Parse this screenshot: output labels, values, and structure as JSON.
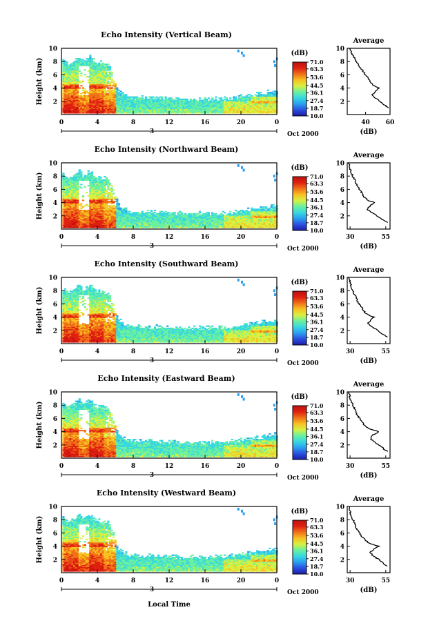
{
  "chart_data": {
    "type": "heatmap",
    "shared": {
      "ylabel": "Height (km)",
      "yticks": [
        "2",
        "4",
        "6",
        "8",
        "10"
      ],
      "ylim": [
        0,
        10
      ],
      "xticks": [
        "0",
        "4",
        "8",
        "12",
        "16",
        "20",
        "0"
      ],
      "xlim": [
        0,
        24
      ],
      "date_day": "3",
      "date_label": "Oct 2000",
      "xlabel": "Local Time",
      "colorbar_unit": "(dB)",
      "colorbar_ticks": [
        "71.0",
        "63.3",
        "53.6",
        "44.5",
        "36.1",
        "27.4",
        "18.7",
        "10.0"
      ],
      "colorbar_range": [
        10.0,
        71.0
      ],
      "colormap": [
        "#1c1ca6",
        "#2a50e0",
        "#2aa0f0",
        "#37d8e0",
        "#6af0a0",
        "#d8f040",
        "#f8c020",
        "#f07018",
        "#e02010",
        "#c01010"
      ],
      "profile_title": "Average",
      "profile_xlabel": "(dB)"
    },
    "panels": [
      {
        "title": "Echo Intensity (Vertical Beam)",
        "profile_xticks": [
          "40",
          "60"
        ],
        "profile_xlim": [
          25,
          60
        ],
        "profile": [
          [
            1.0,
            59.0
          ],
          [
            1.5,
            55.0
          ],
          [
            2.0,
            52.0
          ],
          [
            2.5,
            48.0
          ],
          [
            3.0,
            45.5
          ],
          [
            3.5,
            48.0
          ],
          [
            4.0,
            51.0
          ],
          [
            4.3,
            47.0
          ],
          [
            4.8,
            44.0
          ],
          [
            5.5,
            42.0
          ],
          [
            6.5,
            38.0
          ],
          [
            7.5,
            34.0
          ],
          [
            8.5,
            31.0
          ],
          [
            9.5,
            28.0
          ],
          [
            10.0,
            27.0
          ]
        ]
      },
      {
        "title": "Echo Intensity (Northward Beam)",
        "profile_xticks": [
          "30",
          "55"
        ],
        "profile_xlim": [
          28,
          58
        ],
        "profile": [
          [
            1.0,
            56.0
          ],
          [
            1.5,
            52.0
          ],
          [
            2.0,
            49.0
          ],
          [
            2.5,
            45.0
          ],
          [
            3.0,
            42.0
          ],
          [
            3.5,
            44.0
          ],
          [
            4.0,
            47.0
          ],
          [
            4.3,
            43.0
          ],
          [
            4.8,
            40.0
          ],
          [
            5.5,
            38.0
          ],
          [
            6.5,
            35.0
          ],
          [
            7.5,
            33.0
          ],
          [
            8.5,
            31.0
          ],
          [
            9.5,
            29.5
          ],
          [
            10.0,
            29.0
          ]
        ]
      },
      {
        "title": "Echo Intensity (Southward Beam)",
        "profile_xticks": [
          "30",
          "55"
        ],
        "profile_xlim": [
          28,
          58
        ],
        "profile": [
          [
            1.0,
            56.0
          ],
          [
            1.5,
            52.0
          ],
          [
            2.0,
            49.0
          ],
          [
            2.5,
            46.0
          ],
          [
            3.0,
            42.5
          ],
          [
            3.5,
            44.0
          ],
          [
            4.0,
            47.0
          ],
          [
            4.3,
            43.0
          ],
          [
            4.8,
            40.0
          ],
          [
            5.5,
            38.0
          ],
          [
            6.5,
            35.0
          ],
          [
            7.5,
            33.0
          ],
          [
            8.5,
            31.0
          ],
          [
            9.5,
            29.5
          ],
          [
            10.0,
            29.0
          ]
        ]
      },
      {
        "title": "Echo Intensity (Eastward Beam)",
        "profile_xticks": [
          "30",
          "55"
        ],
        "profile_xlim": [
          28,
          58
        ],
        "profile": [
          [
            1.0,
            56.0
          ],
          [
            1.5,
            53.0
          ],
          [
            2.0,
            50.0
          ],
          [
            2.5,
            46.5
          ],
          [
            3.0,
            44.0
          ],
          [
            3.5,
            46.0
          ],
          [
            4.0,
            50.0
          ],
          [
            4.3,
            45.0
          ],
          [
            4.8,
            41.0
          ],
          [
            5.5,
            38.0
          ],
          [
            6.5,
            35.0
          ],
          [
            7.5,
            33.0
          ],
          [
            8.5,
            31.0
          ],
          [
            9.5,
            29.5
          ],
          [
            10.0,
            29.0
          ]
        ]
      },
      {
        "title": "Echo Intensity (Westward Beam)",
        "profile_xticks": [
          "30",
          "55"
        ],
        "profile_xlim": [
          28,
          58
        ],
        "profile": [
          [
            1.0,
            56.0
          ],
          [
            1.5,
            53.0
          ],
          [
            2.0,
            50.0
          ],
          [
            2.5,
            46.5
          ],
          [
            3.0,
            44.0
          ],
          [
            3.5,
            46.0
          ],
          [
            4.0,
            50.0
          ],
          [
            4.3,
            45.0
          ],
          [
            4.8,
            41.0
          ],
          [
            5.5,
            38.0
          ],
          [
            6.5,
            35.0
          ],
          [
            7.5,
            33.0
          ],
          [
            8.5,
            31.0
          ],
          [
            9.5,
            29.5
          ],
          [
            10.0,
            29.0
          ]
        ]
      }
    ]
  }
}
